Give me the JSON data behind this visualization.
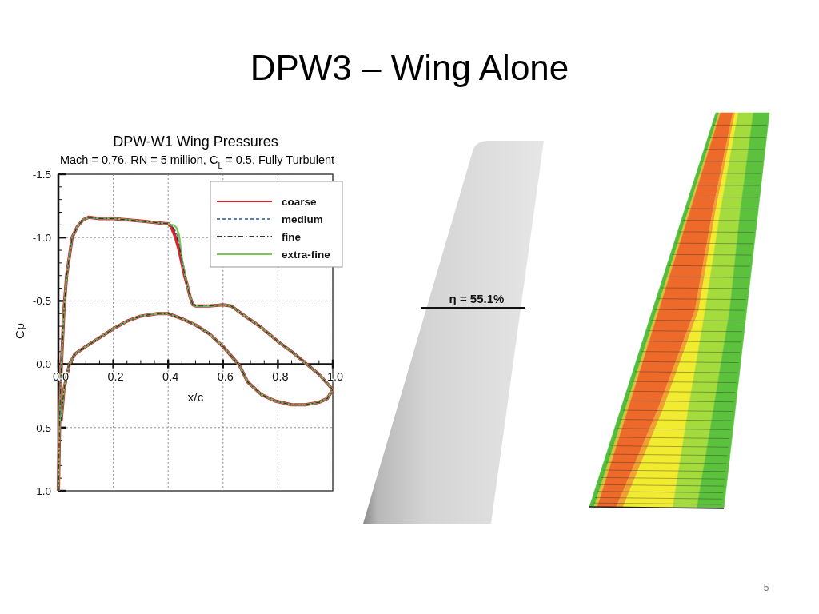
{
  "chart_data": {
    "type": "line",
    "title": "DPW-W1 Wing Pressures",
    "subtitle": "Mach = 0.76, RN = 5 million, C$_{L}$ = 0.5, Fully Turbulent",
    "xlabel": "x/c",
    "ylabel": "Cp",
    "annotations": [
      "DPW3 – Wing Alone",
      "η = 55.1%",
      "5"
    ],
    "x": [
      0,
      0.005,
      0.01,
      0.02,
      0.03,
      0.05,
      0.07,
      0.09,
      0.11,
      0.15,
      0.2,
      0.3,
      0.35,
      0.39,
      0.4,
      0.41,
      0.42,
      0.43,
      0.44,
      0.45,
      0.46,
      0.47,
      0.48,
      0.49,
      0.5,
      0.55,
      0.6,
      0.63,
      0.68,
      0.74,
      0.8,
      0.85,
      0.9,
      0.95,
      1,
      0.98,
      0.95,
      0.9,
      0.85,
      0.79,
      0.74,
      0.69,
      0.66,
      0.6,
      0.55,
      0.5,
      0.45,
      0.4,
      0.36,
      0.3,
      0.25,
      0.2,
      0.15,
      0.1,
      0.06,
      0.04,
      0.02,
      0.01
    ],
    "series": [
      {
        "name": "coarse",
        "color": "#d7262e",
        "line_style": "solid",
        "values": [
          1.0,
          0.4,
          0.05,
          -0.42,
          -0.7,
          -1.0,
          -1.09,
          -1.14,
          -1.16,
          -1.15,
          -1.15,
          -1.13,
          -1.12,
          -1.11,
          -1.11,
          -1.09,
          -1.04,
          -0.98,
          -0.9,
          -0.8,
          -0.7,
          -0.62,
          -0.53,
          -0.47,
          -0.46,
          -0.46,
          -0.47,
          -0.46,
          -0.38,
          -0.29,
          -0.18,
          -0.1,
          -0.01,
          0.08,
          0.2,
          0.27,
          0.3,
          0.32,
          0.32,
          0.29,
          0.24,
          0.14,
          0.01,
          -0.14,
          -0.24,
          -0.31,
          -0.36,
          -0.4,
          -0.4,
          -0.38,
          -0.34,
          -0.28,
          -0.21,
          -0.14,
          -0.08,
          0,
          0.2,
          0.45
        ]
      },
      {
        "name": "medium",
        "color": "#5b7fae",
        "line_style": "dashed",
        "values": [
          1.0,
          0.4,
          0.05,
          -0.42,
          -0.7,
          -1.0,
          -1.09,
          -1.14,
          -1.16,
          -1.15,
          -1.15,
          -1.13,
          -1.12,
          -1.11,
          -1.11,
          -1.1,
          -1.08,
          -1.04,
          -0.96,
          -0.83,
          -0.71,
          -0.62,
          -0.53,
          -0.47,
          -0.46,
          -0.46,
          -0.47,
          -0.46,
          -0.38,
          -0.29,
          -0.18,
          -0.1,
          -0.01,
          0.08,
          0.2,
          0.27,
          0.3,
          0.32,
          0.32,
          0.29,
          0.24,
          0.14,
          0.01,
          -0.14,
          -0.24,
          -0.31,
          -0.36,
          -0.4,
          -0.4,
          -0.38,
          -0.34,
          -0.28,
          -0.21,
          -0.14,
          -0.08,
          0,
          0.2,
          0.45
        ]
      },
      {
        "name": "fine",
        "color": "#333333",
        "line_style": "dashdot",
        "values": [
          1.0,
          0.4,
          0.05,
          -0.42,
          -0.7,
          -1.0,
          -1.09,
          -1.14,
          -1.16,
          -1.15,
          -1.15,
          -1.13,
          -1.12,
          -1.11,
          -1.11,
          -1.1,
          -1.07,
          -1.02,
          -0.94,
          -0.82,
          -0.71,
          -0.62,
          -0.53,
          -0.47,
          -0.46,
          -0.46,
          -0.47,
          -0.46,
          -0.38,
          -0.29,
          -0.18,
          -0.1,
          -0.01,
          0.08,
          0.2,
          0.27,
          0.3,
          0.32,
          0.32,
          0.29,
          0.24,
          0.14,
          0.01,
          -0.14,
          -0.24,
          -0.31,
          -0.36,
          -0.4,
          -0.4,
          -0.38,
          -0.34,
          -0.28,
          -0.21,
          -0.14,
          -0.08,
          0,
          0.2,
          0.45
        ]
      },
      {
        "name": "extra-fine",
        "color": "#78c850",
        "line_style": "solid",
        "values": [
          1.0,
          0.4,
          0.05,
          -0.42,
          -0.7,
          -1.0,
          -1.09,
          -1.14,
          -1.16,
          -1.15,
          -1.15,
          -1.13,
          -1.12,
          -1.11,
          -1.11,
          -1.1,
          -1.1,
          -1.08,
          -1.02,
          -0.84,
          -0.72,
          -0.62,
          -0.53,
          -0.47,
          -0.46,
          -0.46,
          -0.47,
          -0.46,
          -0.38,
          -0.29,
          -0.18,
          -0.1,
          -0.01,
          0.08,
          0.2,
          0.27,
          0.3,
          0.32,
          0.32,
          0.29,
          0.24,
          0.14,
          0.01,
          -0.14,
          -0.24,
          -0.31,
          -0.36,
          -0.4,
          -0.4,
          -0.38,
          -0.34,
          -0.28,
          -0.21,
          -0.14,
          -0.08,
          0,
          0.2,
          0.45
        ]
      }
    ],
    "xlim": [
      0,
      1
    ],
    "ylim": [
      1.0,
      -1.5
    ],
    "xticks": [
      {
        "value": 0,
        "label": "0.0"
      },
      {
        "value": 0.05,
        "label": null
      },
      {
        "value": 0.1,
        "label": null
      },
      {
        "value": 0.15,
        "label": null
      },
      0.2,
      {
        "value": 0.25,
        "label": null
      },
      {
        "value": 0.3,
        "label": null
      },
      {
        "value": 0.35,
        "label": null
      },
      0.4,
      {
        "value": 0.45,
        "label": null
      },
      {
        "value": 0.5,
        "label": null
      },
      {
        "value": 0.55,
        "label": null
      },
      0.6,
      {
        "value": 0.65,
        "label": null
      },
      {
        "value": 0.7,
        "label": null
      },
      {
        "value": 0.75,
        "label": null
      },
      0.8,
      {
        "value": 0.85,
        "label": null
      },
      {
        "value": 0.9,
        "label": null
      },
      {
        "value": 0.95,
        "label": null
      },
      {
        "value": 1,
        "label": "1.0"
      }
    ],
    "yticks": [
      -1.5,
      {
        "value": -1.4,
        "label": null
      },
      {
        "value": -1.3,
        "label": null
      },
      {
        "value": -1.2,
        "label": null
      },
      {
        "value": -1.1,
        "label": null
      },
      {
        "value": -1.0,
        "label": "-1.0"
      },
      {
        "value": -0.9,
        "label": null
      },
      {
        "value": -0.8,
        "label": null
      },
      {
        "value": -0.7,
        "label": null
      },
      {
        "value": -0.6,
        "label": null
      },
      -0.5,
      {
        "value": -0.4,
        "label": null
      },
      {
        "value": -0.3,
        "label": null
      },
      {
        "value": -0.2,
        "label": null
      },
      {
        "value": -0.1,
        "label": null
      },
      {
        "value": 0,
        "label": "0.0"
      },
      {
        "value": 0.1,
        "label": null
      },
      {
        "value": 0.2,
        "label": null
      },
      {
        "value": 0.3,
        "label": null
      },
      {
        "value": 0.4,
        "label": null
      },
      0.5,
      {
        "value": 0.6,
        "label": null
      },
      {
        "value": 0.7,
        "label": null
      },
      {
        "value": 0.8,
        "label": null
      },
      {
        "value": 0.9,
        "label": null
      },
      {
        "value": 1.0,
        "label": "1.0"
      }
    ],
    "grid": true,
    "legend": "top right"
  }
}
